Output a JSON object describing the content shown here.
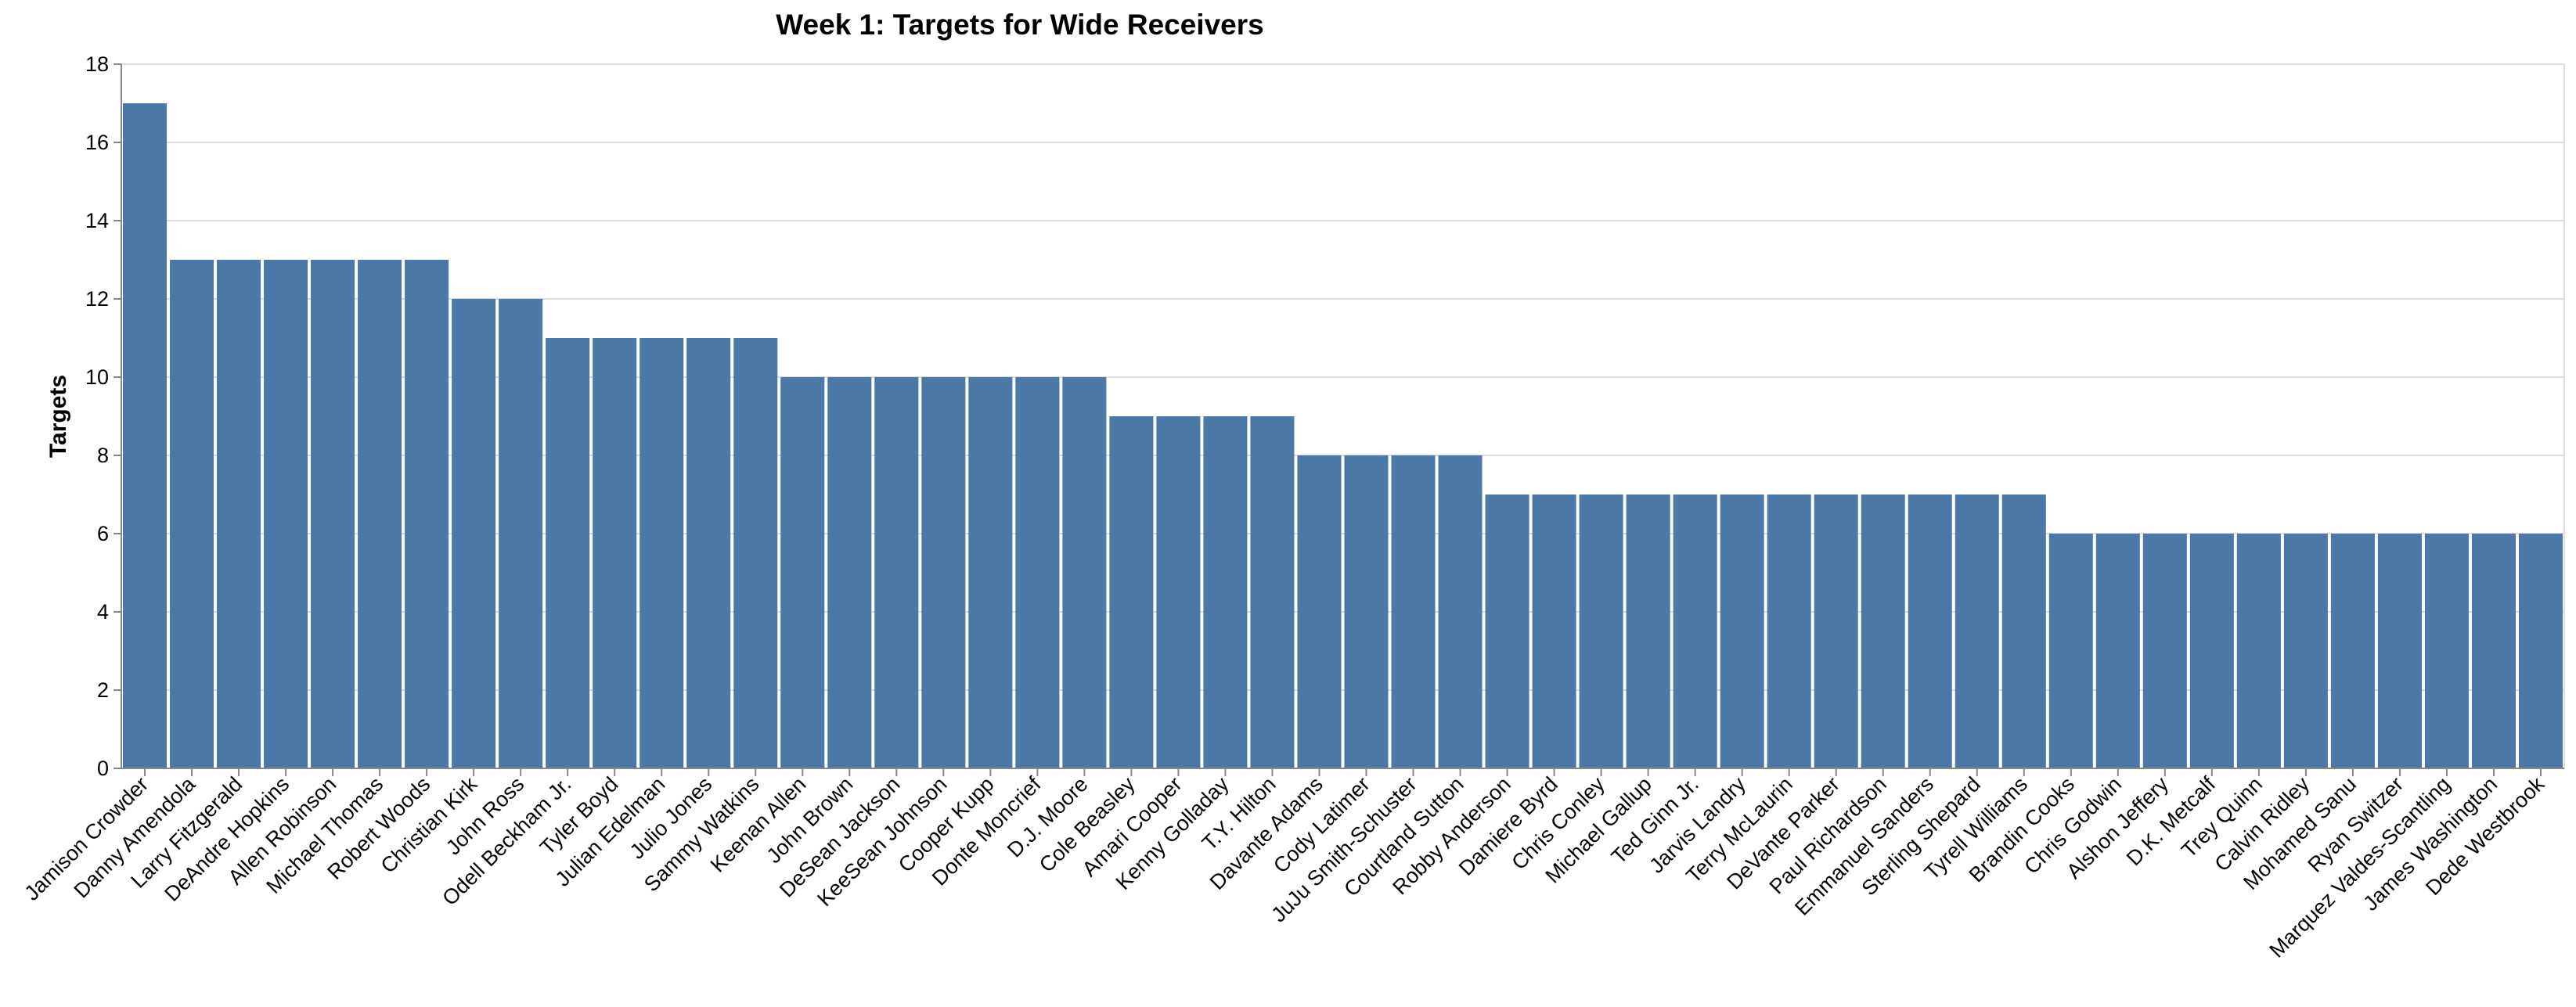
{
  "chart_data": {
    "type": "bar",
    "title": "Week 1: Targets for Wide Receivers",
    "xlabel": "",
    "ylabel": "Targets",
    "ylim": [
      0,
      18
    ],
    "yticks": [
      0,
      2,
      4,
      6,
      8,
      10,
      12,
      14,
      16,
      18
    ],
    "grid": true,
    "bar_color": "#4c78a8",
    "categories": [
      "Jamison Crowder",
      "Danny Amendola",
      "Larry Fitzgerald",
      "DeAndre Hopkins",
      "Allen Robinson",
      "Michael Thomas",
      "Robert Woods",
      "Christian Kirk",
      "John Ross",
      "Odell Beckham Jr.",
      "Tyler Boyd",
      "Julian Edelman",
      "Julio Jones",
      "Sammy Watkins",
      "Keenan Allen",
      "John Brown",
      "DeSean Jackson",
      "KeeSean Johnson",
      "Cooper Kupp",
      "Donte Moncrief",
      "D.J. Moore",
      "Cole Beasley",
      "Amari Cooper",
      "Kenny Golladay",
      "T.Y. Hilton",
      "Davante Adams",
      "Cody Latimer",
      "JuJu Smith-Schuster",
      "Courtland Sutton",
      "Robby Anderson",
      "Damiere Byrd",
      "Chris Conley",
      "Michael Gallup",
      "Ted Ginn Jr.",
      "Jarvis Landry",
      "Terry McLaurin",
      "DeVante Parker",
      "Paul Richardson",
      "Emmanuel Sanders",
      "Sterling Shepard",
      "Tyrell Williams",
      "Brandin Cooks",
      "Chris Godwin",
      "Alshon Jeffery",
      "D.K. Metcalf",
      "Trey Quinn",
      "Calvin Ridley",
      "Mohamed Sanu",
      "Ryan Switzer",
      "Marquez Valdes-Scantling",
      "James Washington",
      "Dede Westbrook"
    ],
    "values": [
      17,
      13,
      13,
      13,
      13,
      13,
      13,
      12,
      12,
      11,
      11,
      11,
      11,
      11,
      10,
      10,
      10,
      10,
      10,
      10,
      10,
      9,
      9,
      9,
      9,
      8,
      8,
      8,
      8,
      7,
      7,
      7,
      7,
      7,
      7,
      7,
      7,
      7,
      7,
      7,
      7,
      6,
      6,
      6,
      6,
      6,
      6,
      6,
      6,
      6,
      6,
      6
    ]
  }
}
